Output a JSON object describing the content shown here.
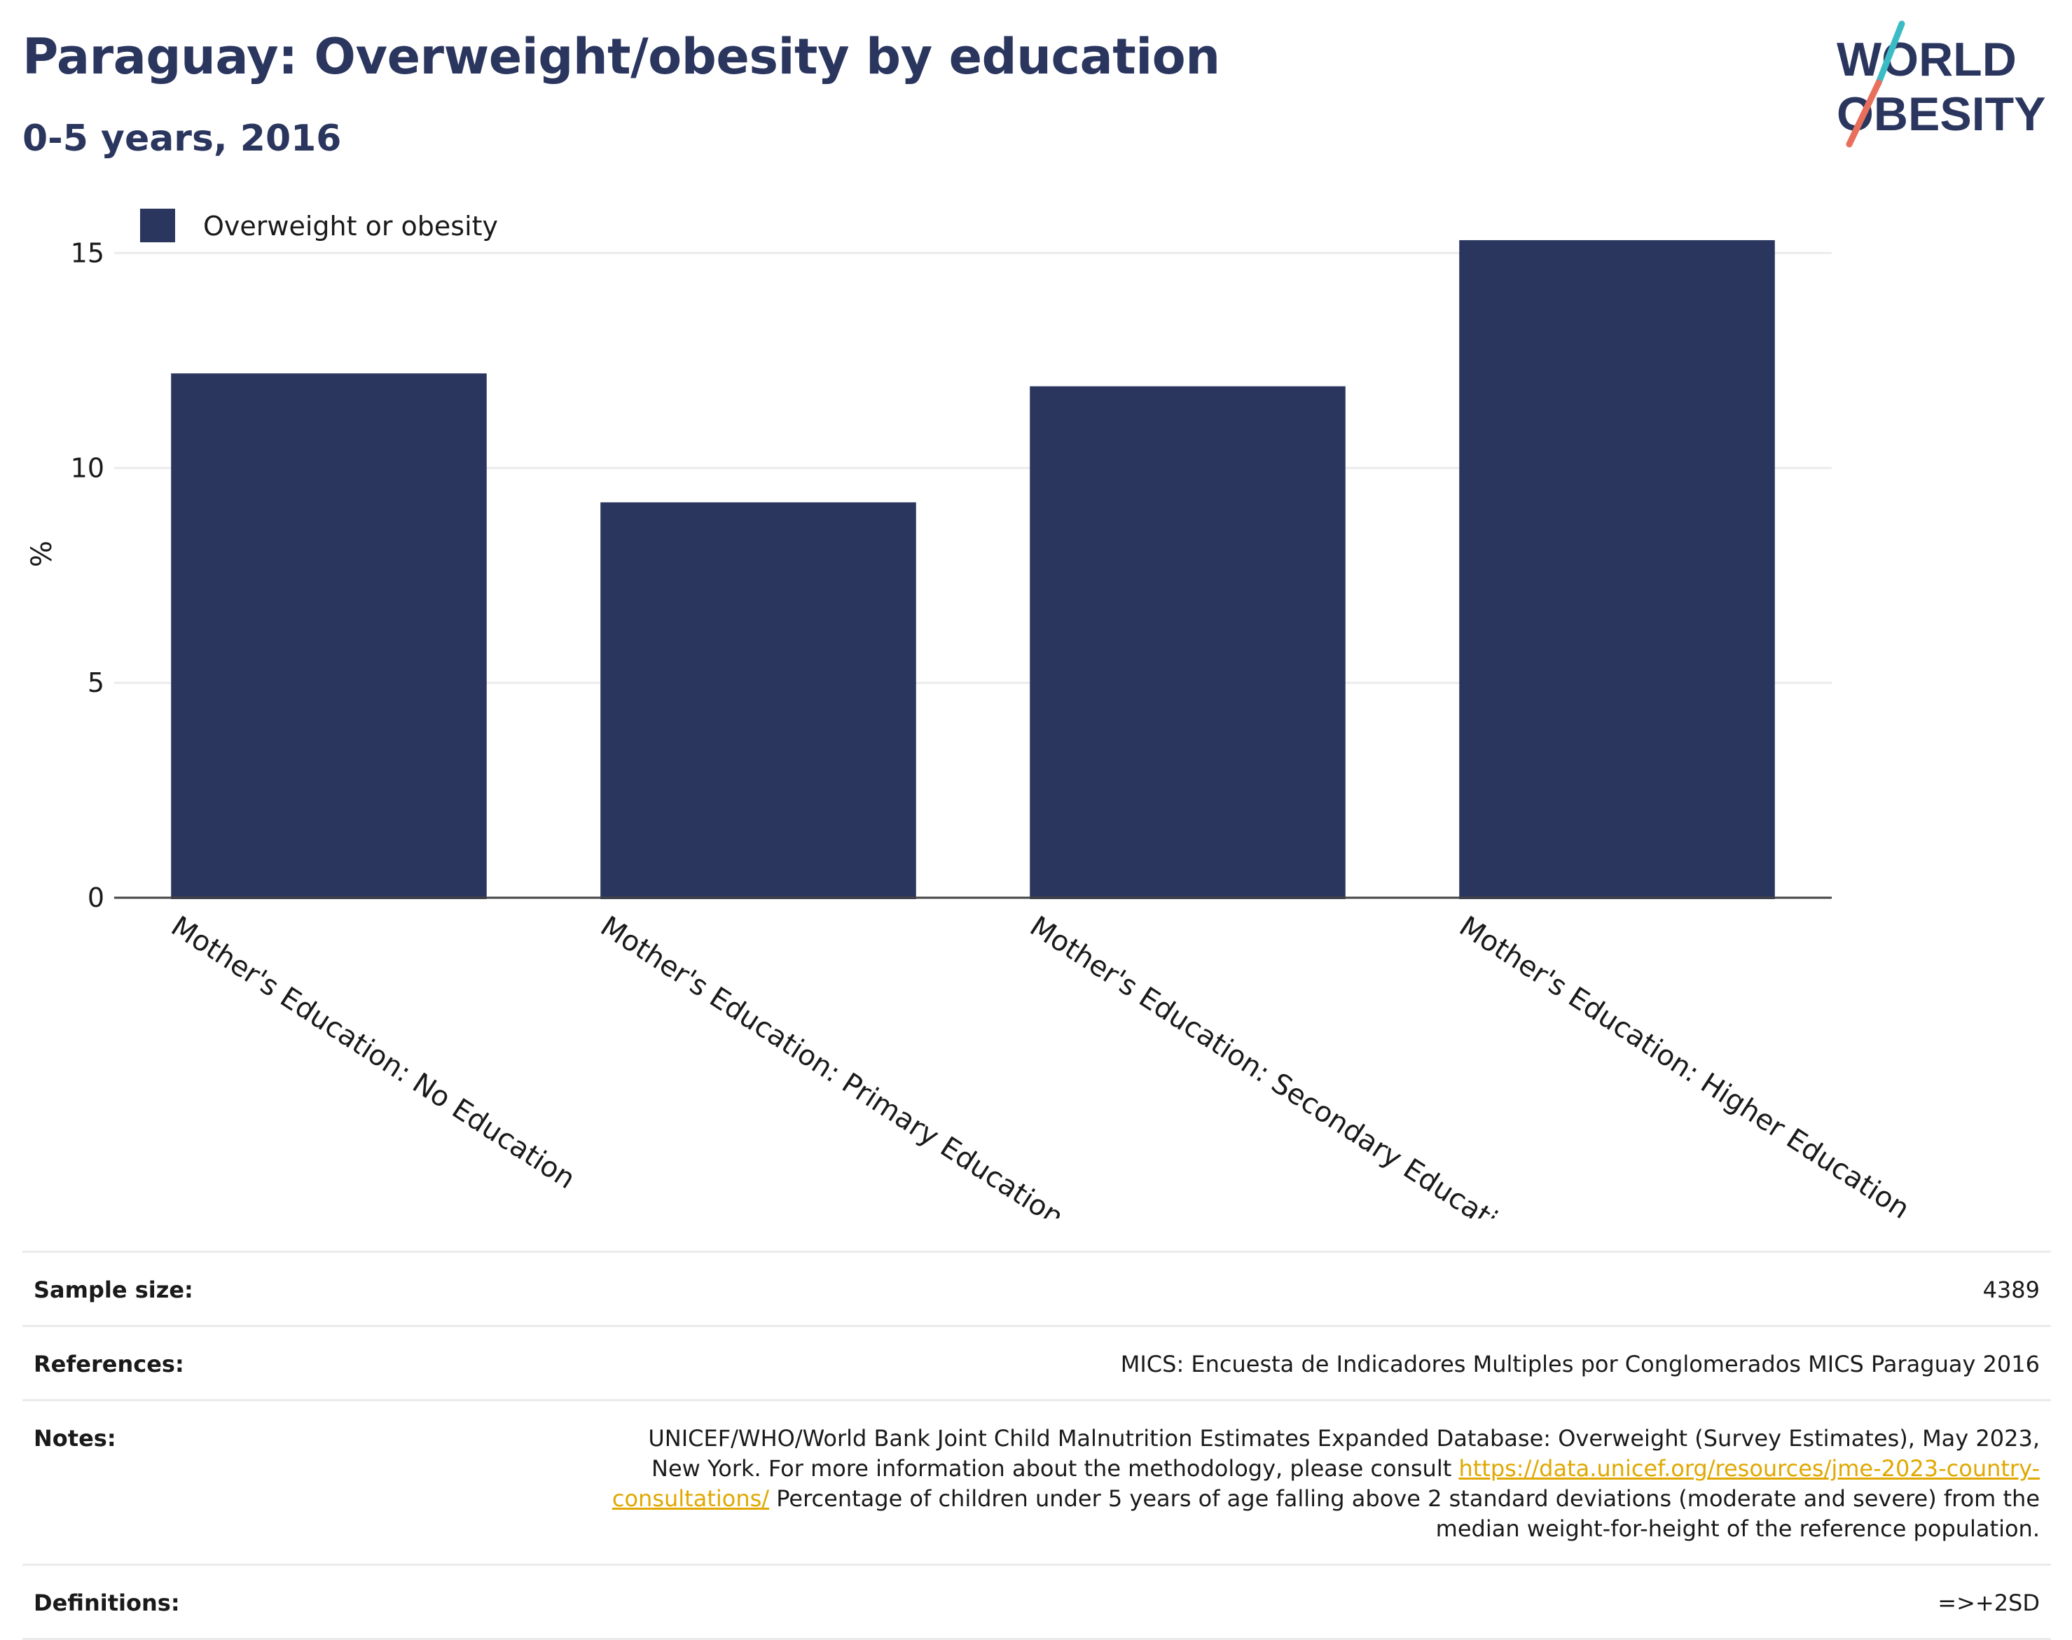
{
  "header": {
    "title": "Paraguay: Overweight/obesity by education",
    "subtitle": "0-5 years, 2016"
  },
  "logo": {
    "line1": "WORLD",
    "line2": "OBESITY",
    "colors": {
      "text": "#2b365f",
      "slash_teal": "#3bbcc4",
      "slash_coral": "#e96f5d"
    }
  },
  "chart_data": {
    "type": "bar",
    "title": "",
    "xlabel": "",
    "ylabel": "%",
    "ylim": [
      0,
      16
    ],
    "yticks": [
      0,
      5,
      10,
      15
    ],
    "grid": true,
    "legend_position": "top-left",
    "categories": [
      "Mother's Education: No Education",
      "Mother's Education: Primary Education",
      "Mother's Education: Secondary Education",
      "Mother's Education: Higher Education"
    ],
    "series": [
      {
        "name": "Overweight or obesity",
        "values": [
          12.2,
          9.2,
          11.9,
          15.3
        ],
        "color": "#2b365f"
      }
    ]
  },
  "info": {
    "rows": [
      {
        "label": "Sample size:",
        "value": "4389"
      },
      {
        "label": "References:",
        "value": "MICS: Encuesta de Indicadores Multiples por Conglomerados MICS Paraguay 2016"
      },
      {
        "label": "Notes:",
        "value_before_link": "UNICEF/WHO/World Bank Joint Child Malnutrition Estimates Expanded Database: Overweight (Survey Estimates), May 2023, New York. For more information about the methodology, please consult ",
        "link": "https://data.unicef.org/resources/jme-2023-country-consultations/",
        "value_after_link": " Percentage of children under 5 years of age falling above 2 standard deviations (moderate and severe) from the median weight-for-height of the reference population."
      },
      {
        "label": "Definitions:",
        "value": "=>+2SD"
      }
    ]
  }
}
